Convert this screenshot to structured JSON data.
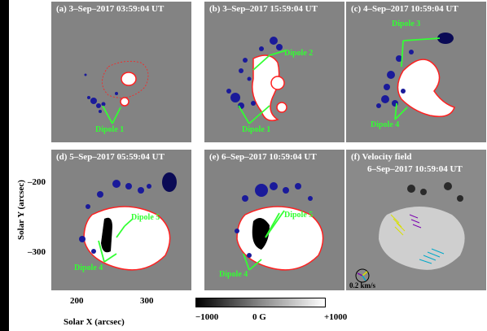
{
  "panels": [
    {
      "title": "(a)  3–Sep–2017 03:59:04 UT",
      "labels": [
        "Dipole 1"
      ]
    },
    {
      "title": "(b)  3–Sep–2017 15:59:04 UT",
      "labels": [
        "Dipole 2",
        "Dipole 1"
      ]
    },
    {
      "title": "(c)  4–Sep–2017 10:59:04 UT",
      "labels": [
        "Dipole 3",
        "Dipole 4"
      ]
    },
    {
      "title": "(d)  5–Sep–2017 05:59:04 UT",
      "labels": [
        "Dipole 5",
        "Dipole 4"
      ]
    },
    {
      "title": "(e)  6–Sep–2017 10:59:04 UT",
      "labels": [
        "Dipole 5",
        "Dipole 4"
      ]
    },
    {
      "title": "(f)  Velocity field",
      "subtitle": "6–Sep–2017 10:59:04 UT",
      "speed": "0.2 km/s"
    }
  ],
  "axes": {
    "ylabel": "Solar Y (arcsec)",
    "xlabel": "Solar X (arcsec)",
    "yticks": [
      "–200",
      "–300"
    ],
    "xticks": [
      "200",
      "300"
    ]
  },
  "colorbar": {
    "min": "−1000",
    "mid": "0 G",
    "max": "+1000"
  },
  "colors": {
    "background": "#838383",
    "contour": "#ff2020",
    "negative": "#1a1a9a",
    "label": "#33ff33"
  }
}
